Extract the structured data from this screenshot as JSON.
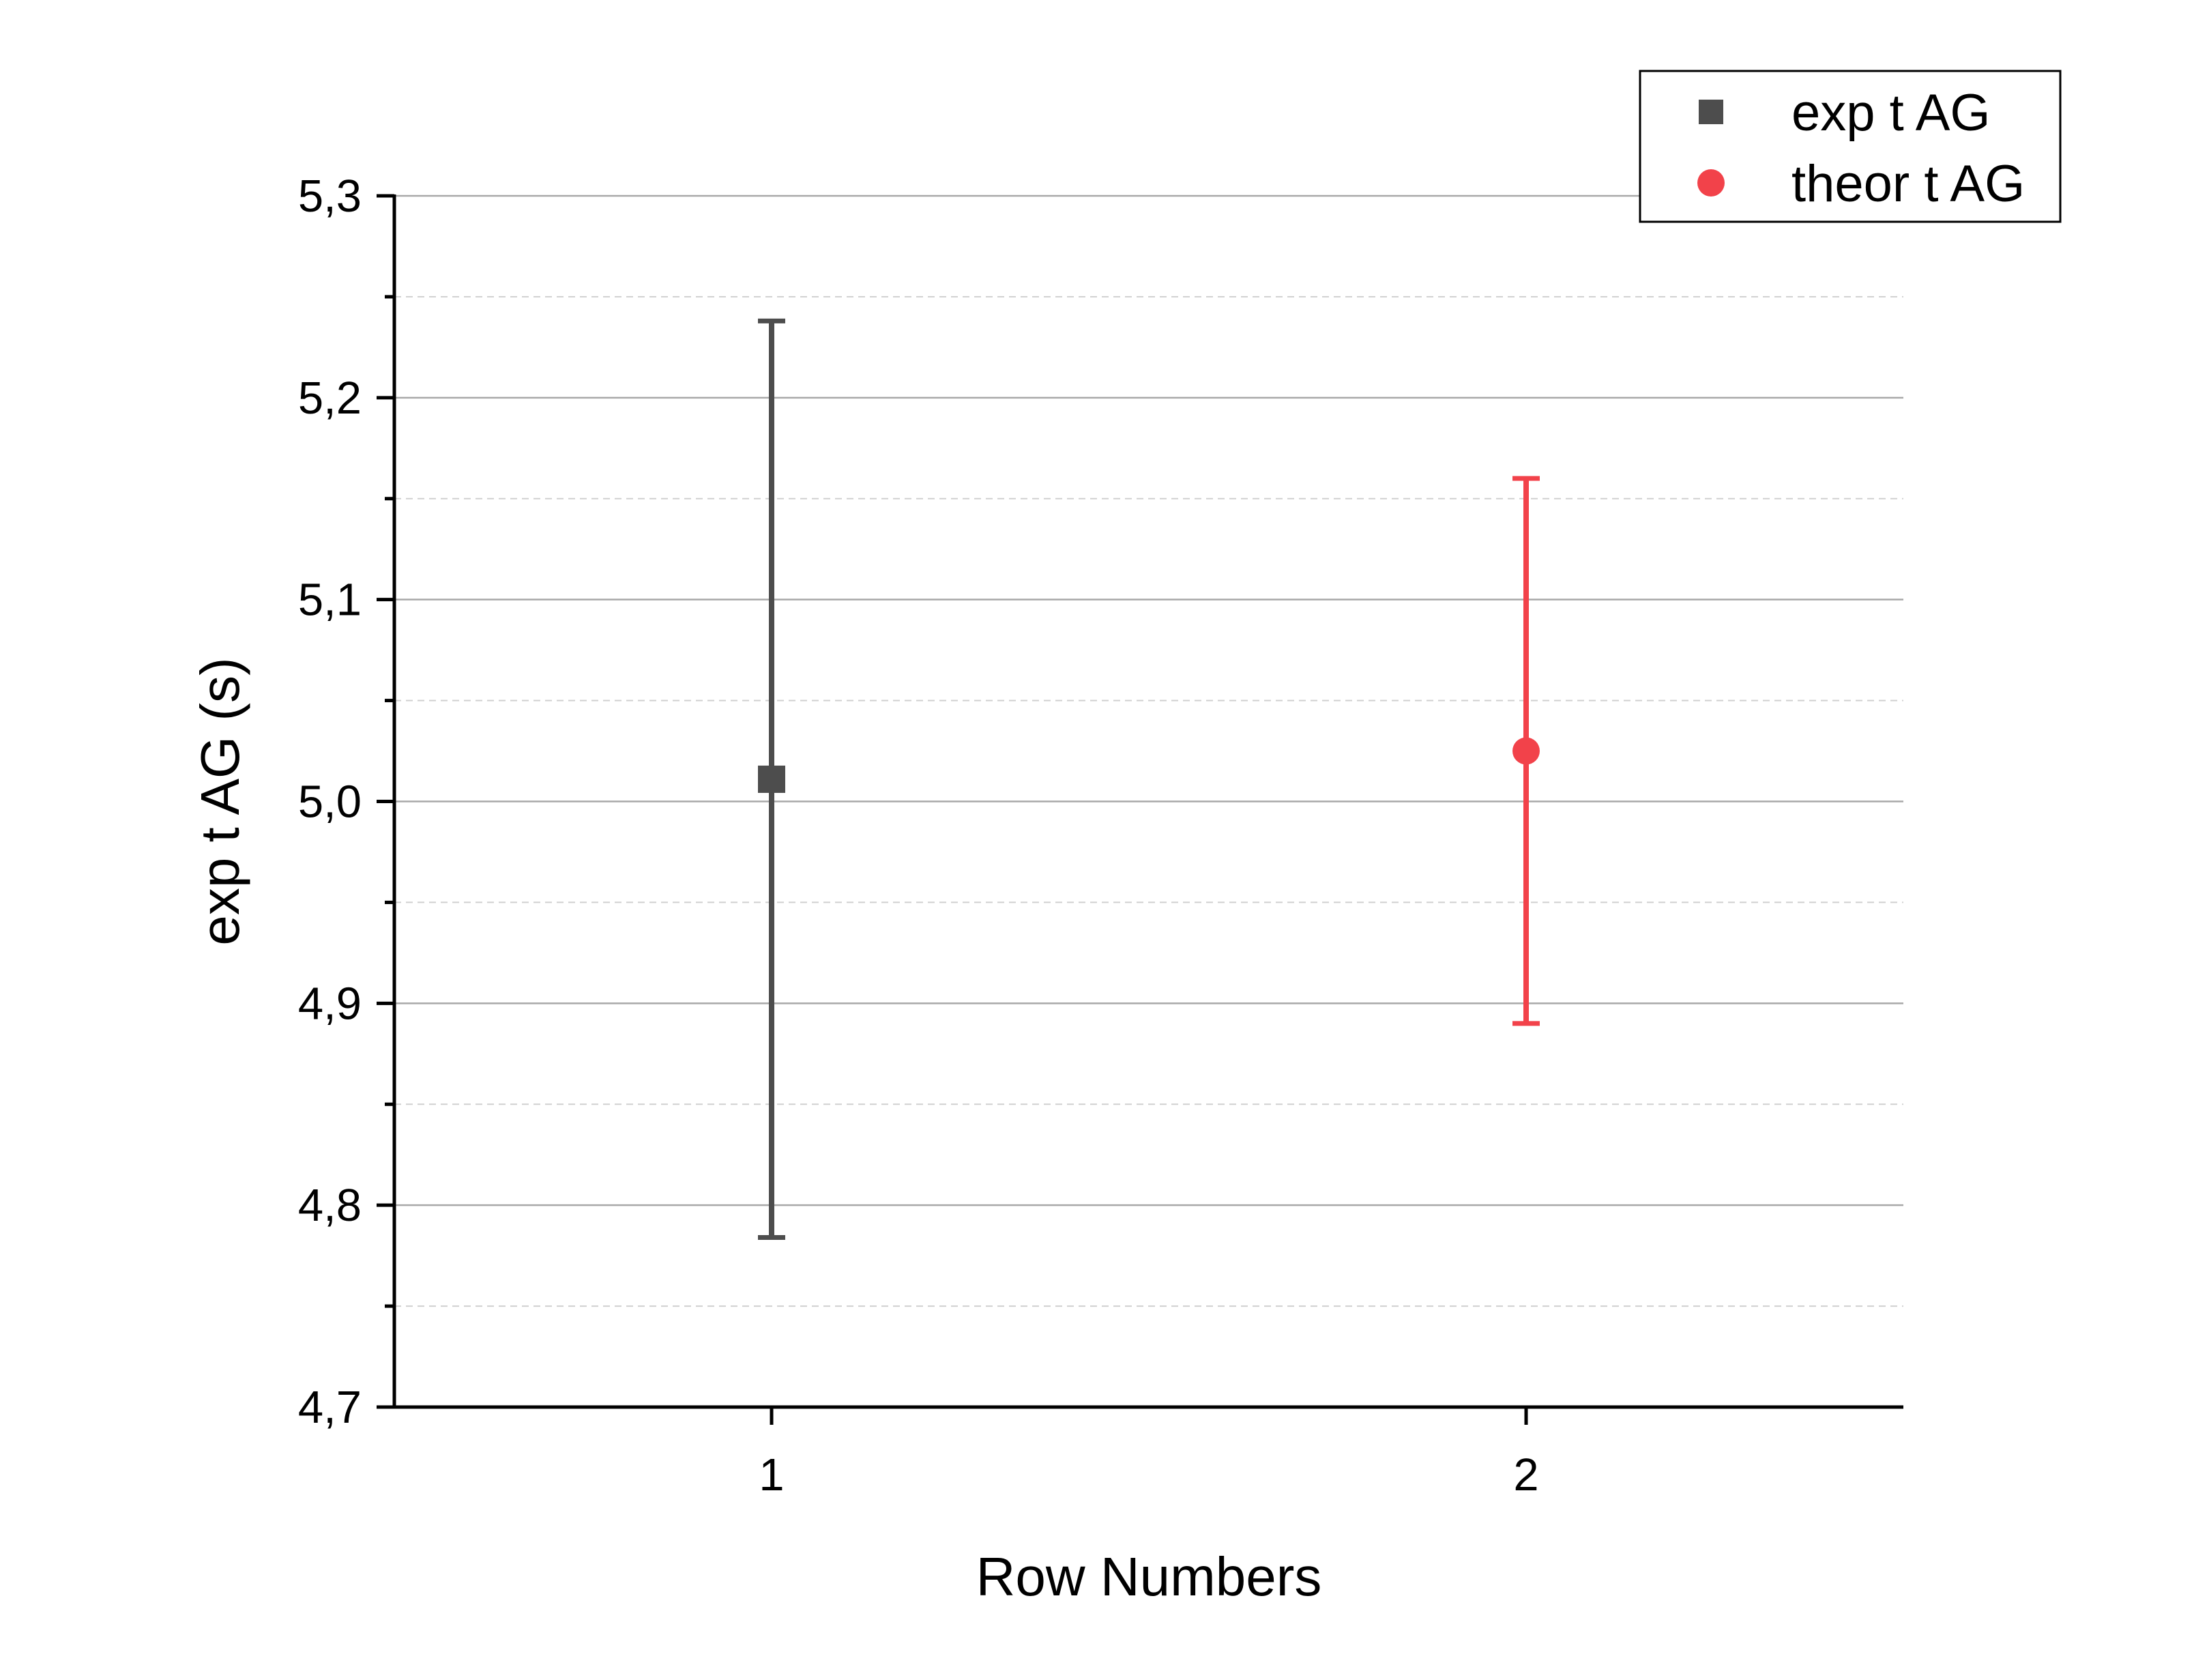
{
  "chart_data": {
    "type": "scatter",
    "title": "",
    "xlabel": "Row Numbers",
    "ylabel": "exp t AG (s)",
    "xlim": [
      0.5,
      2.5
    ],
    "ylim": [
      4.7,
      5.3
    ],
    "x_ticks": [
      "1",
      "2"
    ],
    "y_ticks": [
      "4,7",
      "4,8",
      "4,9",
      "5,0",
      "5,1",
      "5,2",
      "5,3"
    ],
    "grid": {
      "major": true,
      "minor": true
    },
    "legend": {
      "position": "top-right"
    },
    "series": [
      {
        "name": "exp t AG",
        "marker": "square",
        "color": "#4d4d4d",
        "x": [
          1
        ],
        "y": [
          5.011
        ],
        "error": [
          0.227
        ]
      },
      {
        "name": "theor t AG",
        "marker": "circle",
        "color": "#f2424a",
        "x": [
          2
        ],
        "y": [
          5.025
        ],
        "error": [
          0.135
        ]
      }
    ]
  }
}
